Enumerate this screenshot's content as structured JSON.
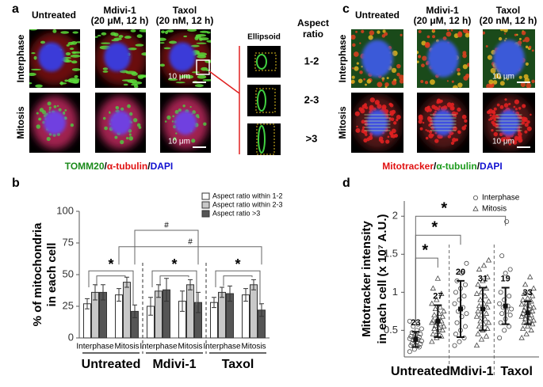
{
  "panel_a": {
    "letter": "a",
    "columns": [
      [
        "Untreated"
      ],
      [
        "Mdivi-1",
        "(20 μM, 12 h)"
      ],
      [
        "Taxol",
        "(20 nM, 12 h)"
      ]
    ],
    "rows": [
      "Interphase",
      "Mitosis"
    ],
    "scale_bar": "10 μm",
    "stain": [
      "TOMM20",
      "/",
      "α-tubulin",
      "/",
      "DAPI"
    ],
    "ellipsoid_header": "Ellipsoid",
    "ratio_header": [
      "Aspect",
      "ratio"
    ],
    "ratios": [
      "1-2",
      "2-3",
      ">3"
    ]
  },
  "panel_c": {
    "letter": "c",
    "columns": [
      [
        "Untreated"
      ],
      [
        "Mdivi-1",
        "(20 μM, 12 h)"
      ],
      [
        "Taxol",
        "(20 nM, 12 h)"
      ]
    ],
    "rows": [
      "Interphase",
      "Mitosis"
    ],
    "scale_bar": "10 μm",
    "stain": [
      "Mitotracker",
      "/",
      "α-tubulin",
      "/",
      "DAPI"
    ]
  },
  "chart_data": [
    {
      "panel": "b",
      "type": "bar",
      "ylabel": [
        "% of mitochondria",
        "in each cell"
      ],
      "groups": [
        "Untreated",
        "Mdivi-1",
        "Taxol"
      ],
      "categories": [
        "Interphase",
        "Mitosis",
        "Interphase",
        "Mitosis",
        "Interphase",
        "Mitosis"
      ],
      "series": [
        {
          "name": "Aspect ratio within 1-2",
          "color": "#ffffff",
          "values": [
            27,
            34,
            25,
            29,
            28,
            34
          ],
          "errors": [
            4,
            5,
            7,
            8,
            4,
            5
          ]
        },
        {
          "name": "Aspect ratio within 2-3",
          "color": "#c8c8c8",
          "values": [
            36,
            44,
            37,
            42,
            36,
            42
          ],
          "errors": [
            6,
            4,
            5,
            4,
            4,
            4
          ]
        },
        {
          "name": "Aspect ratio >3",
          "color": "#555555",
          "values": [
            36,
            21,
            38,
            28,
            35,
            22
          ],
          "errors": [
            6,
            5,
            9,
            8,
            6,
            5
          ]
        }
      ],
      "ylim": [
        0,
        100
      ],
      "yticks": [
        0,
        25,
        50,
        75,
        100
      ],
      "annotations": [
        "*",
        "*",
        "*",
        "#",
        "#"
      ],
      "legend": "upper right"
    },
    {
      "panel": "d",
      "type": "strip",
      "ylabel": [
        "Mitotracker intensity",
        "in each cell (x 10⁷ A.U.)"
      ],
      "categories": [
        "Untreated",
        "Mdivi-1",
        "Taxol"
      ],
      "series": [
        {
          "name": "Interphase",
          "marker": "circle",
          "points": [
            [
              0.22,
              0.25,
              0.28,
              0.3,
              0.3,
              0.32,
              0.33,
              0.35,
              0.36,
              0.37,
              0.38,
              0.39,
              0.4,
              0.41,
              0.42,
              0.44,
              0.45,
              0.47,
              0.5,
              0.52,
              0.55,
              0.58,
              0.62
            ],
            [
              0.3,
              0.35,
              0.4,
              0.45,
              0.5,
              0.55,
              0.6,
              0.68,
              0.72,
              0.75,
              0.8,
              0.85,
              0.9,
              0.95,
              1.0,
              1.05,
              1.1,
              1.15,
              1.25,
              1.38
            ],
            [
              0.4,
              0.5,
              0.55,
              0.6,
              0.65,
              0.7,
              0.72,
              0.75,
              0.78,
              0.8,
              0.82,
              0.85,
              0.9,
              0.95,
              1.0,
              1.25,
              1.3,
              1.48,
              1.93
            ]
          ],
          "mean": [
            0.38,
            0.78,
            0.82
          ],
          "sd": [
            0.1,
            0.37,
            0.24
          ],
          "n": [
            23,
            20,
            19
          ]
        },
        {
          "name": "Mitosis",
          "marker": "triangle",
          "points": [
            [
              0.35,
              0.4,
              0.42,
              0.45,
              0.48,
              0.5,
              0.52,
              0.53,
              0.55,
              0.56,
              0.58,
              0.6,
              0.6,
              0.62,
              0.63,
              0.65,
              0.68,
              0.7,
              0.72,
              0.75,
              0.78,
              0.8,
              0.85,
              0.9,
              0.98,
              1.05,
              1.18
            ],
            [
              0.3,
              0.38,
              0.42,
              0.45,
              0.5,
              0.52,
              0.55,
              0.58,
              0.6,
              0.62,
              0.65,
              0.68,
              0.7,
              0.72,
              0.75,
              0.78,
              0.8,
              0.82,
              0.85,
              0.88,
              0.9,
              0.95,
              0.98,
              1.0,
              1.05,
              1.1,
              1.15,
              1.2,
              1.3,
              1.35,
              1.42
            ],
            [
              0.4,
              0.45,
              0.5,
              0.52,
              0.55,
              0.58,
              0.6,
              0.62,
              0.63,
              0.65,
              0.66,
              0.68,
              0.7,
              0.7,
              0.72,
              0.73,
              0.75,
              0.76,
              0.78,
              0.8,
              0.8,
              0.82,
              0.84,
              0.86,
              0.88,
              0.9,
              0.92,
              0.95,
              0.98,
              1.0,
              1.05,
              1.1,
              1.2
            ]
          ],
          "mean": [
            0.62,
            0.78,
            0.73
          ],
          "sd": [
            0.21,
            0.28,
            0.15
          ],
          "n": [
            27,
            31,
            33
          ]
        }
      ],
      "ylim": [
        0.15,
        2.2
      ],
      "yticks": [
        0.5,
        1,
        1.5,
        2
      ],
      "annotations": [
        "*",
        "*",
        "*"
      ],
      "legend": "upper right"
    }
  ]
}
